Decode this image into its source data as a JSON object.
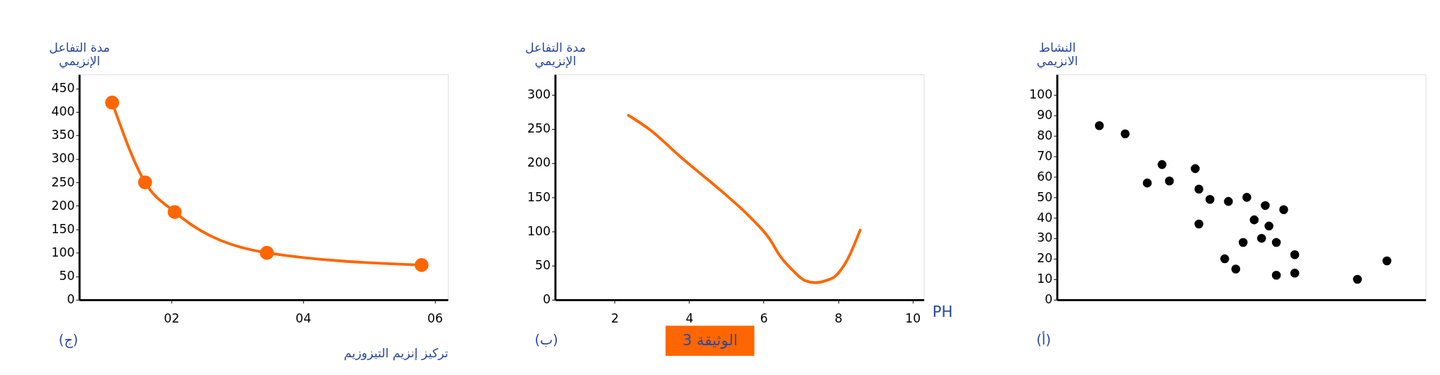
{
  "chart_data": [
    {
      "type": "line",
      "xlabel": "تركيز إنزيم التيزوزيم",
      "ylabel": "مدة التفاعل\nالإنزيمي",
      "annotations": [
        "(ج)"
      ],
      "marker": "circle",
      "x": [
        1.1,
        1.6,
        2.05,
        3.45,
        5.8
      ],
      "series": [
        {
          "color": "#ff6600",
          "values": [
            420,
            250,
            187,
            100,
            74
          ]
        }
      ],
      "xlim": [
        0.6,
        6.2
      ],
      "xticks": [
        {
          "value": 2,
          "label": "02"
        },
        {
          "value": 4,
          "label": "04"
        },
        {
          "value": 6,
          "label": "06"
        }
      ],
      "ylim": [
        0,
        480
      ],
      "yticks": [
        0,
        50,
        100,
        150,
        200,
        250,
        300,
        350,
        400,
        450
      ]
    },
    {
      "type": "line",
      "xlabel": "PH",
      "ylabel": "مدة التفاعل\nالإنزيمي",
      "annotations": [
        "(ب)",
        "الوثيقة 3"
      ],
      "x": [
        2.37,
        2.97,
        3.77,
        4.41,
        5.04,
        5.6,
        6.16,
        6.44,
        6.8,
        7.11,
        7.39,
        7.67,
        7.91,
        8.23,
        8.59
      ],
      "series": [
        {
          "color": "#ff6600",
          "values": [
            270,
            248,
            209,
            180,
            151,
            123,
            89,
            64,
            42,
            28,
            25,
            28,
            34,
            57,
            102
          ]
        }
      ],
      "xlim": [
        0.4,
        10.3
      ],
      "xticks": [
        2,
        4,
        6,
        8,
        10
      ],
      "ylim": [
        0,
        330
      ],
      "yticks": [
        0,
        50,
        100,
        150,
        200,
        250,
        300
      ]
    },
    {
      "type": "scatter",
      "ylabel": "النشاط\nالانزيمي",
      "annotations": [
        "(أ)"
      ],
      "marker": "circle",
      "tick_labels": "y",
      "categories": [
        null,
        null,
        null,
        null,
        null,
        null,
        null,
        null,
        null,
        null,
        null,
        null,
        null,
        null,
        null,
        null,
        null,
        null,
        null,
        null,
        null,
        null,
        null,
        null,
        null,
        null,
        null,
        null,
        null,
        null,
        null,
        null,
        null,
        null,
        null,
        null,
        null,
        null,
        null,
        null,
        null,
        null,
        null,
        null,
        null,
        null,
        null,
        null,
        null,
        null,
        null,
        null,
        null,
        null,
        null,
        null,
        null,
        null,
        null,
        null,
        null,
        null,
        null,
        null,
        null,
        null,
        null,
        null,
        null,
        null,
        null,
        null,
        null,
        null,
        null,
        null,
        null,
        null,
        null,
        null,
        null,
        null,
        null,
        null,
        null,
        null,
        null,
        null,
        null,
        null,
        null,
        null,
        null,
        null,
        null,
        null,
        null,
        null,
        null,
        null
      ],
      "series": [
        {
          "color": "#000000",
          "values": [
            null,
            null,
            null,
            null,
            null,
            null,
            null,
            null,
            null,
            null,
            null,
            85,
            null,
            null,
            null,
            null,
            null,
            null,
            81,
            null,
            null,
            null,
            null,
            null,
            57,
            null,
            null,
            null,
            66,
            null,
            58,
            null,
            null,
            null,
            null,
            null,
            null,
            64,
            54,
            null,
            null,
            49,
            null,
            null,
            null,
            20,
            48,
            null,
            15,
            null,
            28,
            50,
            null,
            39,
            null,
            30,
            46,
            36,
            null,
            28,
            null,
            44,
            null,
            null,
            22,
            null,
            null,
            null,
            null,
            null,
            null,
            null,
            null,
            null,
            null,
            null,
            null,
            null,
            null,
            null,
            null,
            10,
            null,
            null,
            null,
            null,
            null,
            null,
            null,
            19,
            null,
            null,
            null,
            null,
            null,
            null,
            null,
            null,
            null,
            null
          ]
        },
        {
          "color": "#000000",
          "values": [
            null,
            null,
            null,
            null,
            null,
            null,
            null,
            null,
            null,
            null,
            null,
            null,
            null,
            null,
            null,
            null,
            null,
            null,
            null,
            null,
            null,
            null,
            null,
            null,
            null,
            null,
            null,
            null,
            null,
            null,
            null,
            null,
            null,
            null,
            null,
            null,
            null,
            null,
            37,
            null,
            null,
            null,
            null,
            null,
            null,
            null,
            null,
            null,
            null,
            null,
            null,
            null,
            null,
            null,
            null,
            null,
            null,
            null,
            null,
            12,
            null,
            null,
            null,
            null,
            13,
            null,
            null,
            null,
            null,
            null,
            null,
            null,
            null,
            null,
            null,
            null,
            null,
            null,
            null,
            null,
            null,
            null,
            null,
            null,
            null,
            null,
            null,
            null,
            null,
            null,
            null,
            null,
            null,
            null,
            null,
            null,
            null,
            null,
            null,
            null
          ]
        }
      ],
      "ylim": [
        0,
        110
      ],
      "yticks": [
        0,
        10,
        20,
        30,
        40,
        50,
        60,
        70,
        80,
        90,
        100
      ]
    }
  ]
}
